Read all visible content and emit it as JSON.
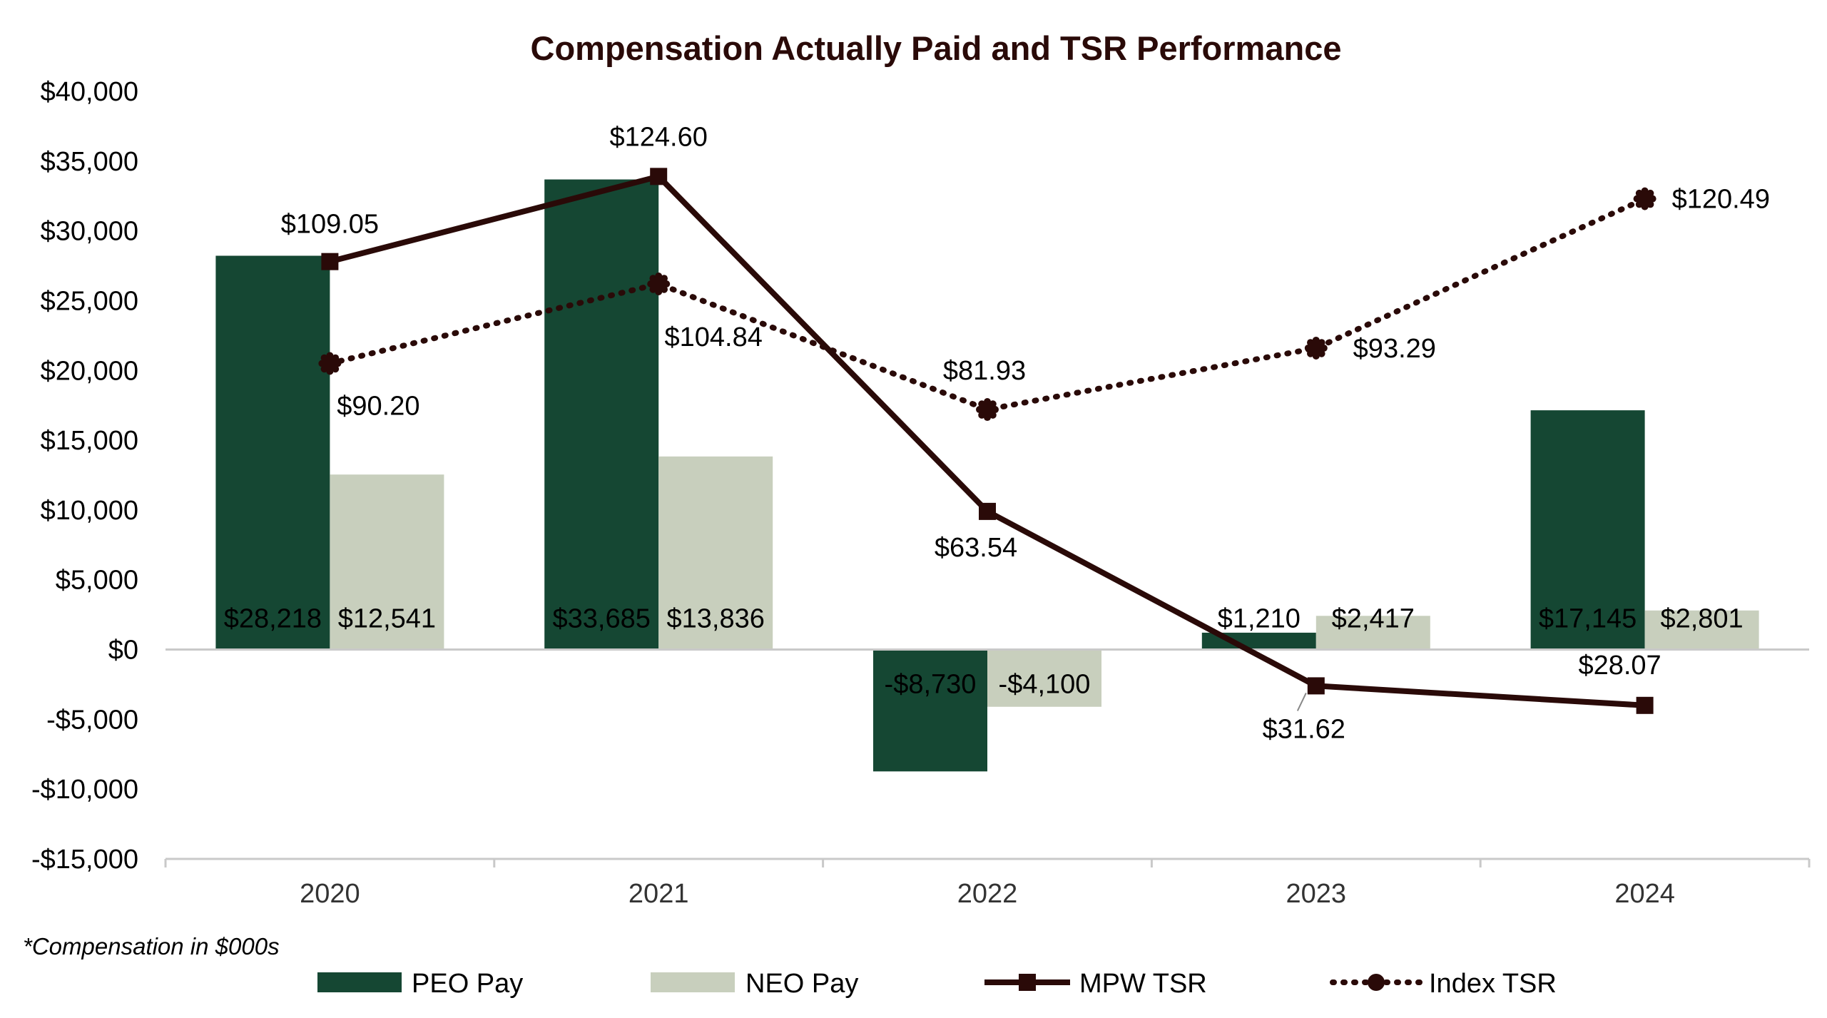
{
  "chart_data": {
    "type": "bar",
    "title": "Compensation Actually Paid and TSR Performance",
    "categories": [
      "2020",
      "2021",
      "2022",
      "2023",
      "2024"
    ],
    "ylim": [
      -15000,
      40000
    ],
    "ytick_values": [
      40000,
      35000,
      30000,
      25000,
      20000,
      15000,
      10000,
      5000,
      0,
      -5000,
      -10000,
      -15000
    ],
    "ytick_labels": [
      "$40,000",
      "$35,000",
      "$30,000",
      "$25,000",
      "$20,000",
      "$15,000",
      "$10,000",
      "$5,000",
      "$0",
      "-$5,000",
      "-$10,000",
      "-$15,000"
    ],
    "footnote": "*Compensation in $000s",
    "series": [
      {
        "name": "PEO Pay",
        "kind": "bar",
        "color": "#154733",
        "label_color": "#9fd08a",
        "values": [
          28218,
          33685,
          -8730,
          1210,
          17145
        ],
        "labels": [
          "$28,218",
          "$33,685",
          "-$8,730",
          "$1,210",
          "$17,145"
        ]
      },
      {
        "name": "NEO Pay",
        "kind": "bar",
        "color": "#c8cfbd",
        "label_color": "#000000",
        "values": [
          12541,
          13836,
          -4100,
          2417,
          2801
        ],
        "labels": [
          "$12,541",
          "$13,836",
          "-$4,100",
          "$2,417",
          "$2,801"
        ]
      },
      {
        "name": "MPW TSR",
        "kind": "line",
        "style": "solid",
        "marker": "square",
        "color": "#2a0a08",
        "tsr_values": [
          109.05,
          124.6,
          63.54,
          31.62,
          28.07
        ],
        "plot_positions": [
          27800,
          33900,
          9900,
          -2600,
          -4000
        ],
        "labels": [
          "$109.05",
          "$124.60",
          "$63.54",
          "$31.62",
          "$28.07"
        ]
      },
      {
        "name": "Index TSR",
        "kind": "line",
        "style": "dotted",
        "marker": "circle",
        "color": "#2a0a08",
        "tsr_values": [
          90.2,
          104.84,
          81.93,
          93.29,
          120.49
        ],
        "plot_positions": [
          20500,
          26200,
          17200,
          21600,
          32300
        ],
        "labels": [
          "$90.20",
          "$104.84",
          "$81.93",
          "$93.29",
          "$120.49"
        ]
      }
    ]
  }
}
